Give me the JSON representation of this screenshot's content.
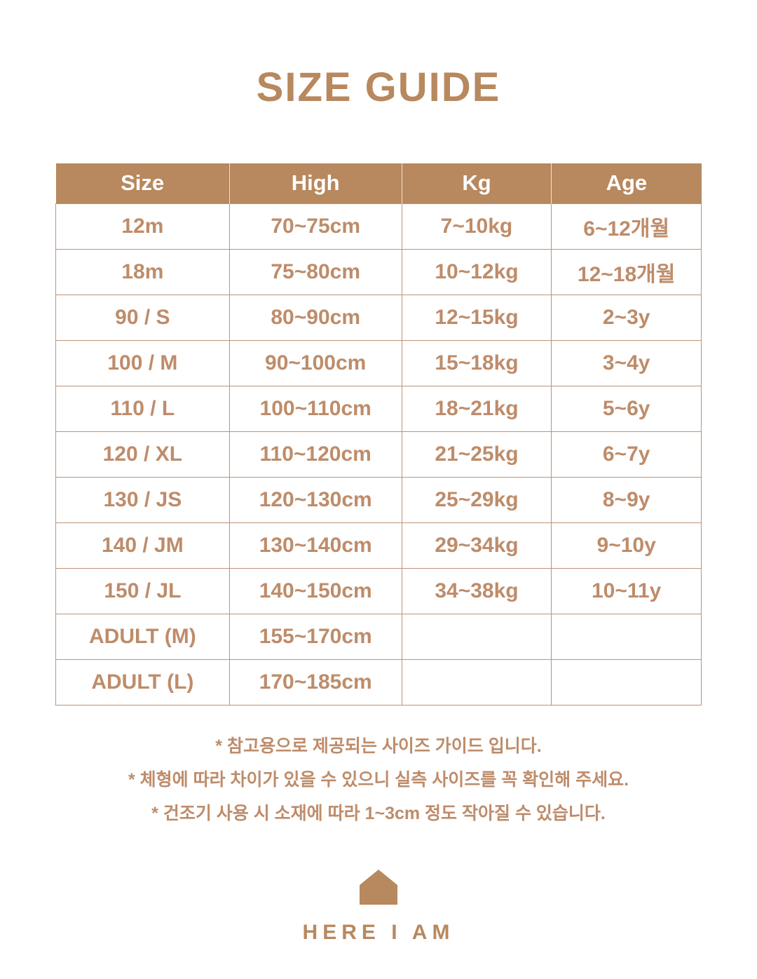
{
  "page": {
    "title": "SIZE GUIDE"
  },
  "table": {
    "headers": [
      "Size",
      "High",
      "Kg",
      "Age"
    ],
    "rows": [
      [
        "12m",
        "70~75cm",
        "7~10kg",
        "6~12개월"
      ],
      [
        "18m",
        "75~80cm",
        "10~12kg",
        "12~18개월"
      ],
      [
        "90 / S",
        "80~90cm",
        "12~15kg",
        "2~3y"
      ],
      [
        "100 / M",
        "90~100cm",
        "15~18kg",
        "3~4y"
      ],
      [
        "110 / L",
        "100~110cm",
        "18~21kg",
        "5~6y"
      ],
      [
        "120 / XL",
        "110~120cm",
        "21~25kg",
        "6~7y"
      ],
      [
        "130 / JS",
        "120~130cm",
        "25~29kg",
        "8~9y"
      ],
      [
        "140 / JM",
        "130~140cm",
        "29~34kg",
        "9~10y"
      ],
      [
        "150 / JL",
        "140~150cm",
        "34~38kg",
        "10~11y"
      ],
      [
        "ADULT (M)",
        "155~170cm",
        "",
        ""
      ],
      [
        "ADULT (L)",
        "170~185cm",
        "",
        ""
      ]
    ]
  },
  "notes": [
    "* 참고용으로 제공되는 사이즈 가이드 입니다.",
    "* 체형에 따라 차이가 있을 수 있으니 실측 사이즈를 꼭 확인해 주세요.",
    "* 건조기 사용 시 소재에 따라 1~3cm 정도 작아질 수 있습니다."
  ],
  "brand": {
    "name": "HERE I AM",
    "logo_icon": "house-icon"
  },
  "colors": {
    "brand_brown": "#B8885E",
    "text_brown": "#BE8C6A",
    "header_text": "#FFFFFF",
    "border": "#BD9377",
    "background": "#FFFFFF"
  }
}
